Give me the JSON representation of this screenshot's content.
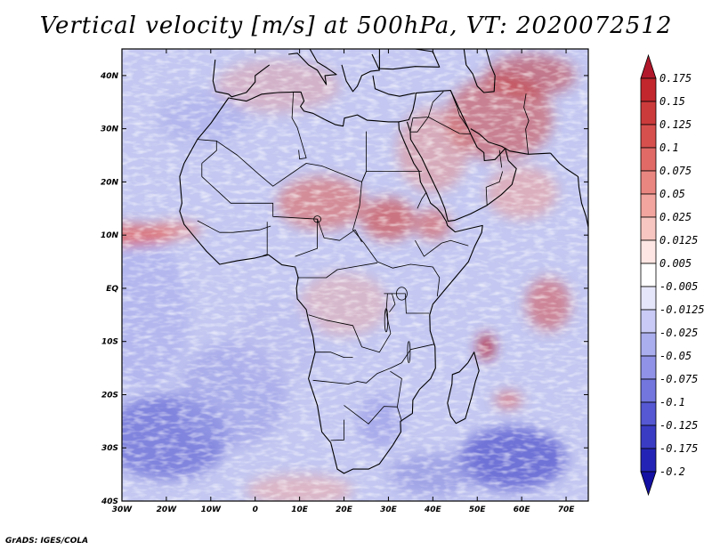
{
  "title": "Vertical velocity [m/s] at 500hPa, VT: 2020072512",
  "credit": "GrADS: IGES/COLA",
  "axes": {
    "lon_labels": [
      "30W",
      "20W",
      "10W",
      "0",
      "10E",
      "20E",
      "30E",
      "40E",
      "50E",
      "60E",
      "70E"
    ],
    "lon_values": [
      -30,
      -20,
      -10,
      0,
      10,
      20,
      30,
      40,
      50,
      60,
      70
    ],
    "lat_labels": [
      "40N",
      "30N",
      "20N",
      "10N",
      "EQ",
      "10S",
      "20S",
      "30S",
      "40S"
    ],
    "lat_values": [
      40,
      30,
      20,
      10,
      0,
      -10,
      -20,
      -30,
      -40
    ],
    "lon_range": [
      -30,
      75
    ],
    "lat_range": [
      -40,
      45
    ]
  },
  "colorbar": {
    "labels": [
      "0.175",
      "0.15",
      "0.125",
      "0.1",
      "0.075",
      "0.05",
      "0.025",
      "0.0125",
      "0.005",
      "-0.005",
      "-0.0125",
      "-0.025",
      "-0.05",
      "-0.075",
      "-0.1",
      "-0.125",
      "-0.175",
      "-0.2"
    ],
    "colors": [
      "#b2182b",
      "#c1272d",
      "#cc3b3b",
      "#d6504e",
      "#e06a66",
      "#ea8680",
      "#f2a59e",
      "#f8c6c0",
      "#fde6e3",
      "#ffffff",
      "#e6e6fb",
      "#c9caf5",
      "#abaeee",
      "#8f92e6",
      "#7276dd",
      "#5558d2",
      "#3a3cc4",
      "#2324b5",
      "#1410a3"
    ]
  }
}
